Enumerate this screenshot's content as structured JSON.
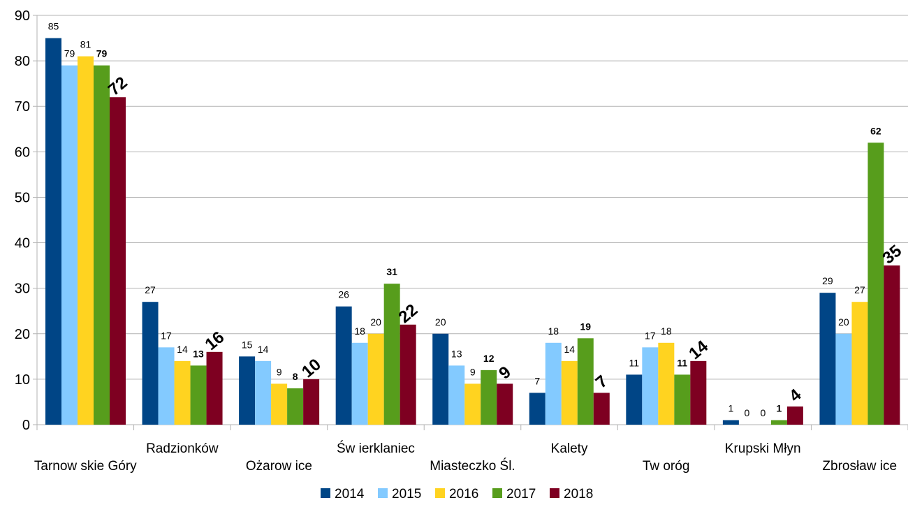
{
  "chart_data": {
    "type": "bar",
    "categories": [
      "Tarnow skie Góry",
      "Radzionków",
      "Ożarow ice",
      "Św ierklaniec",
      "Miasteczko Śl.",
      "Kalety",
      "Tw oróg",
      "Krupski Młyn",
      "Zbrosław ice"
    ],
    "series": [
      {
        "name": "2014",
        "color": "#004586",
        "values": [
          85,
          27,
          15,
          26,
          20,
          7,
          11,
          1,
          29
        ]
      },
      {
        "name": "2015",
        "color": "#83caff",
        "values": [
          79,
          17,
          14,
          18,
          13,
          18,
          17,
          0,
          20
        ]
      },
      {
        "name": "2016",
        "color": "#ffd320",
        "values": [
          81,
          14,
          9,
          20,
          9,
          14,
          18,
          0,
          27
        ]
      },
      {
        "name": "2017",
        "color": "#579d1c",
        "values": [
          79,
          13,
          8,
          31,
          12,
          19,
          11,
          1,
          62
        ]
      },
      {
        "name": "2018",
        "color": "#7e0021",
        "values": [
          72,
          16,
          10,
          22,
          9,
          7,
          14,
          4,
          35
        ]
      }
    ],
    "ylim": [
      0,
      90
    ],
    "yticks": [
      0,
      10,
      20,
      30,
      40,
      50,
      60,
      70,
      80,
      90
    ],
    "grid": true,
    "legend": "bottom",
    "label_style": [
      "normal",
      "normal",
      "normal",
      "bold",
      "large-bold-rotated"
    ]
  }
}
